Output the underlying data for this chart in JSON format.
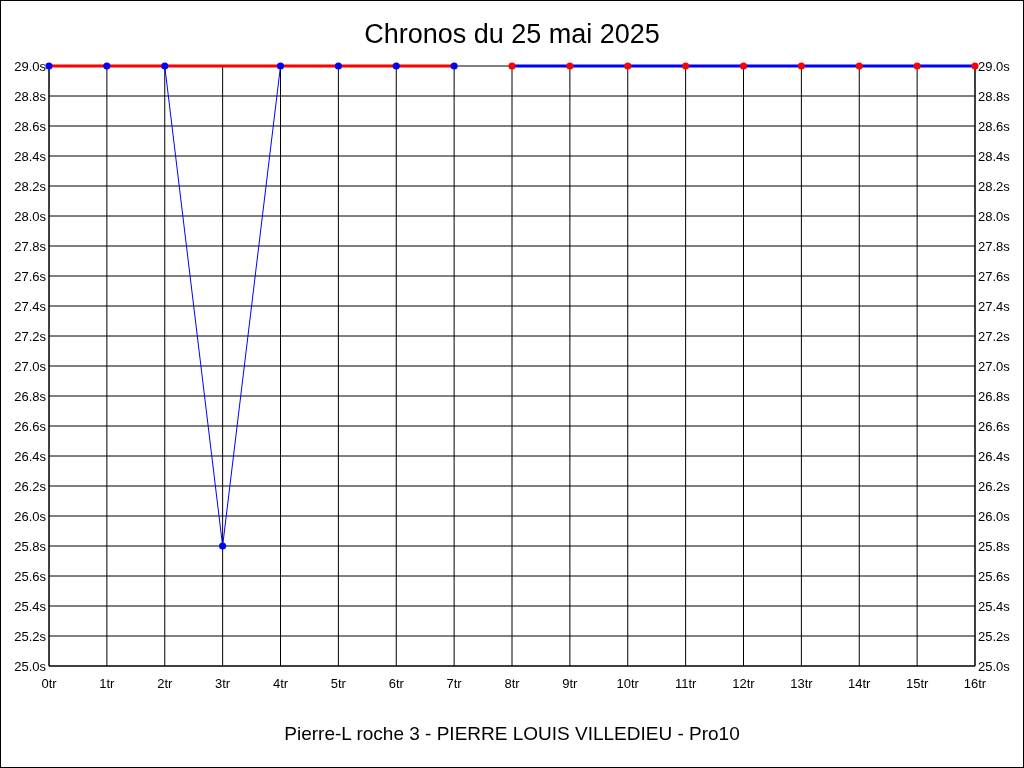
{
  "chart_data": {
    "type": "line",
    "title": "Chronos du 25 mai 2025",
    "xlabel": "Pierre-L roche 3 - PIERRE LOUIS VILLEDIEU - Pro10",
    "xlim": [
      0,
      16
    ],
    "xticks": [
      {
        "value": 0,
        "label": "0tr"
      },
      {
        "value": 1,
        "label": "1tr"
      },
      {
        "value": 2,
        "label": "2tr"
      },
      {
        "value": 3,
        "label": "3tr"
      },
      {
        "value": 4,
        "label": "4tr"
      },
      {
        "value": 5,
        "label": "5tr"
      },
      {
        "value": 6,
        "label": "6tr"
      },
      {
        "value": 7,
        "label": "7tr"
      },
      {
        "value": 8,
        "label": "8tr"
      },
      {
        "value": 9,
        "label": "9tr"
      },
      {
        "value": 10,
        "label": "10tr"
      },
      {
        "value": 11,
        "label": "11tr"
      },
      {
        "value": 12,
        "label": "12tr"
      },
      {
        "value": 13,
        "label": "13tr"
      },
      {
        "value": 14,
        "label": "14tr"
      },
      {
        "value": 15,
        "label": "15tr"
      },
      {
        "value": 16,
        "label": "16tr"
      }
    ],
    "ylim": [
      25,
      29
    ],
    "yticks": [
      {
        "value": 25,
        "label": "25.0s"
      },
      {
        "value": 25.2,
        "label": "25.2s"
      },
      {
        "value": 25.4,
        "label": "25.4s"
      },
      {
        "value": 25.6,
        "label": "25.6s"
      },
      {
        "value": 25.8,
        "label": "25.8s"
      },
      {
        "value": 26,
        "label": "26.0s"
      },
      {
        "value": 26.2,
        "label": "26.2s"
      },
      {
        "value": 26.4,
        "label": "26.4s"
      },
      {
        "value": 26.6,
        "label": "26.6s"
      },
      {
        "value": 26.8,
        "label": "26.8s"
      },
      {
        "value": 27,
        "label": "27.0s"
      },
      {
        "value": 27.2,
        "label": "27.2s"
      },
      {
        "value": 27.4,
        "label": "27.4s"
      },
      {
        "value": 27.6,
        "label": "27.6s"
      },
      {
        "value": 27.8,
        "label": "27.8s"
      },
      {
        "value": 28,
        "label": "28.0s"
      },
      {
        "value": 28.2,
        "label": "28.2s"
      },
      {
        "value": 28.4,
        "label": "28.4s"
      },
      {
        "value": 28.6,
        "label": "28.6s"
      },
      {
        "value": 28.8,
        "label": "28.8s"
      },
      {
        "value": 29,
        "label": "29.0s"
      }
    ],
    "y2lim": [
      25,
      29
    ],
    "y2ticks": [
      {
        "value": 25,
        "label": "25.0s"
      },
      {
        "value": 25.2,
        "label": "25.2s"
      },
      {
        "value": 25.4,
        "label": "25.4s"
      },
      {
        "value": 25.6,
        "label": "25.6s"
      },
      {
        "value": 25.8,
        "label": "25.8s"
      },
      {
        "value": 26,
        "label": "26.0s"
      },
      {
        "value": 26.2,
        "label": "26.2s"
      },
      {
        "value": 26.4,
        "label": "26.4s"
      },
      {
        "value": 26.6,
        "label": "26.6s"
      },
      {
        "value": 26.8,
        "label": "26.8s"
      },
      {
        "value": 27,
        "label": "27.0s"
      },
      {
        "value": 27.2,
        "label": "27.2s"
      },
      {
        "value": 27.4,
        "label": "27.4s"
      },
      {
        "value": 27.6,
        "label": "27.6s"
      },
      {
        "value": 27.8,
        "label": "27.8s"
      },
      {
        "value": 28,
        "label": "28.0s"
      },
      {
        "value": 28.2,
        "label": "28.2s"
      },
      {
        "value": 28.4,
        "label": "28.4s"
      },
      {
        "value": 28.6,
        "label": "28.6s"
      },
      {
        "value": 28.8,
        "label": "28.8s"
      },
      {
        "value": 29,
        "label": "29.0s"
      }
    ],
    "grid": true,
    "marker": "none",
    "series": [
      {
        "color": "#ff0000",
        "x": [
          0,
          1,
          2,
          3,
          4,
          5,
          6,
          7
        ],
        "values": [
          29,
          29,
          29,
          29,
          29,
          29,
          29,
          29
        ]
      },
      {
        "color": "#0000ff",
        "x": [
          2,
          3,
          4
        ],
        "values": [
          29,
          25.8,
          29
        ]
      },
      {
        "color": "#0000ff",
        "x": [
          8,
          9,
          10,
          11,
          12,
          13,
          14,
          15,
          16
        ],
        "values": [
          29,
          29,
          29,
          29,
          29,
          29,
          29,
          29,
          29
        ]
      },
      {
        "type": "scatter",
        "marker": "circle",
        "color": "#0000ff",
        "x": [
          0,
          1,
          2,
          3,
          4,
          5,
          6,
          7
        ],
        "values": [
          29,
          29,
          29,
          25.8,
          29,
          29,
          29,
          29
        ]
      },
      {
        "type": "scatter",
        "marker": "circle",
        "color": "#ff0000",
        "x": [
          8,
          9,
          10,
          11,
          12,
          13,
          14,
          15,
          16
        ],
        "values": [
          29,
          29,
          29,
          29,
          29,
          29,
          29,
          29,
          29
        ]
      }
    ]
  }
}
